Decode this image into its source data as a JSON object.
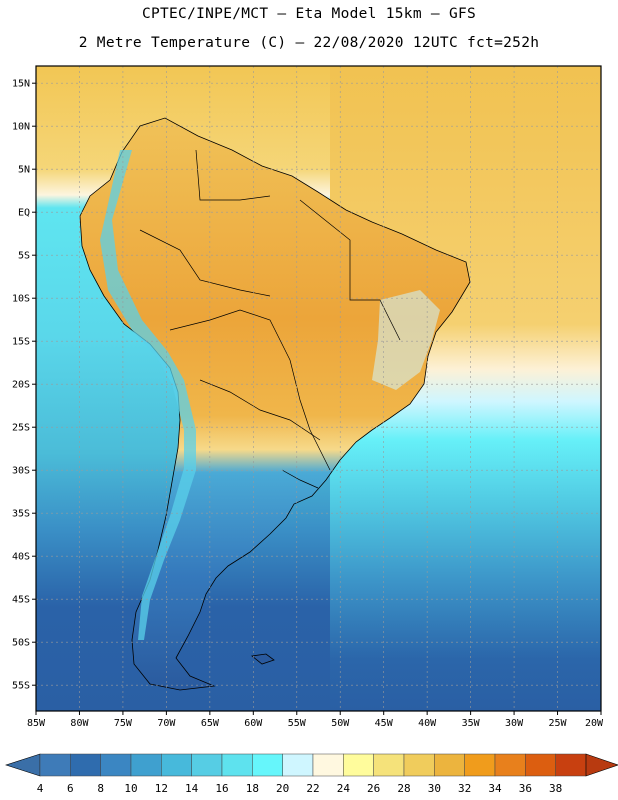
{
  "header": {
    "line1": "CPTEC/INPE/MCT –  Eta Model 15km – GFS",
    "line2": "2 Metre Temperature (C) – 22/08/2020 12UTC fct=252h"
  },
  "map": {
    "lat_labels": [
      "15N",
      "10N",
      "5N",
      "EQ",
      "5S",
      "10S",
      "15S",
      "20S",
      "25S",
      "30S",
      "35S",
      "40S",
      "45S",
      "50S",
      "55S"
    ],
    "lat_values": [
      15,
      10,
      5,
      0,
      -5,
      -10,
      -15,
      -20,
      -25,
      -30,
      -35,
      -40,
      -45,
      -50,
      -55
    ],
    "lon_labels": [
      "85W",
      "80W",
      "75W",
      "70W",
      "65W",
      "60W",
      "55W",
      "50W",
      "45W",
      "40W",
      "35W",
      "30W",
      "25W",
      "20W"
    ],
    "lon_values": [
      -85,
      -80,
      -75,
      -70,
      -65,
      -60,
      -55,
      -50,
      -45,
      -40,
      -35,
      -30,
      -25,
      -20
    ],
    "lat_range": [
      -58,
      17
    ],
    "lon_range": [
      -85,
      -20
    ]
  },
  "colorbar": {
    "labels": [
      "4",
      "6",
      "8",
      "10",
      "12",
      "14",
      "16",
      "18",
      "20",
      "22",
      "24",
      "26",
      "28",
      "30",
      "32",
      "34",
      "36",
      "38"
    ],
    "colors": [
      "#3e7bb8",
      "#2f6cae",
      "#3b86c2",
      "#3fa0cf",
      "#47b9db",
      "#56cde4",
      "#5ee2ee",
      "#66f6fb",
      "#cff6ff",
      "#fff8e0",
      "#fffc9c",
      "#f5e27a",
      "#f0cc5c",
      "#ecb43e",
      "#f09c1c",
      "#e8801c",
      "#dc5e10",
      "#c84010"
    ],
    "low_color": "#3a6fa8",
    "high_color": "#b83a10"
  }
}
